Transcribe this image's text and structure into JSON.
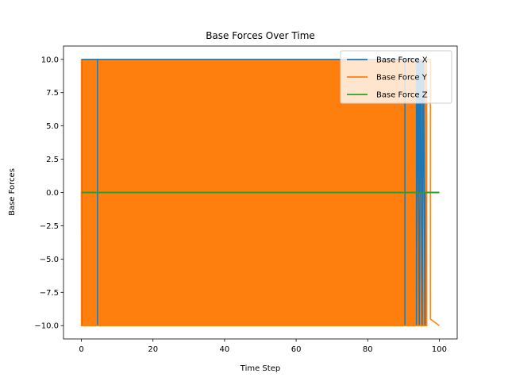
{
  "chart_data": {
    "type": "line",
    "title": "Base Forces Over Time",
    "xlabel": "Time Step",
    "ylabel": "Base Forces",
    "xlim": [
      -5,
      105
    ],
    "ylim": [
      -11,
      11
    ],
    "x_ticks": [
      0,
      20,
      40,
      60,
      80,
      100
    ],
    "y_ticks": [
      -10.0,
      -7.5,
      -5.0,
      -2.5,
      0.0,
      2.5,
      5.0,
      7.5,
      10.0
    ],
    "y_tick_labels": [
      "−10.0",
      "−7.5",
      "−5.0",
      "−2.5",
      "0.0",
      "2.5",
      "5.0",
      "7.5",
      "10.0"
    ],
    "x_tick_labels": [
      "0",
      "20",
      "40",
      "60",
      "80",
      "100"
    ],
    "grid": false,
    "legend_position": "top-right",
    "series": [
      {
        "name": "Base Force X",
        "color": "#1f77b4",
        "values_description_points": [
          [
            0,
            0
          ],
          [
            0.1,
            -10
          ],
          [
            0.1,
            10
          ],
          [
            4.5,
            10
          ],
          [
            4.5,
            -10
          ],
          [
            4.5,
            10
          ],
          [
            90.4,
            10
          ],
          [
            90.4,
            -10
          ],
          [
            90.4,
            10
          ],
          [
            93.6,
            10
          ],
          [
            93.6,
            -10
          ],
          [
            94.0,
            10
          ],
          [
            94.4,
            -10
          ],
          [
            94.8,
            10
          ],
          [
            95.2,
            -10
          ],
          [
            95.6,
            10
          ],
          [
            96.0,
            -10
          ],
          [
            96.0,
            0
          ],
          [
            100,
            0
          ]
        ]
      },
      {
        "name": "Base Force Y",
        "color": "#ff7f0e",
        "values_description_points": [
          [
            0,
            0
          ],
          [
            0,
            10
          ],
          [
            0,
            -10
          ],
          [
            96.5,
            -10
          ],
          [
            96.5,
            10
          ],
          [
            97.5,
            10
          ],
          [
            97.5,
            -9.5
          ],
          [
            100,
            -10
          ]
        ]
      },
      {
        "name": "Base Force Z",
        "color": "#2ca02c",
        "values_description_points": [
          [
            0,
            0
          ],
          [
            100,
            0
          ]
        ]
      }
    ],
    "orange_band_x": [
      0,
      96.5
    ]
  }
}
